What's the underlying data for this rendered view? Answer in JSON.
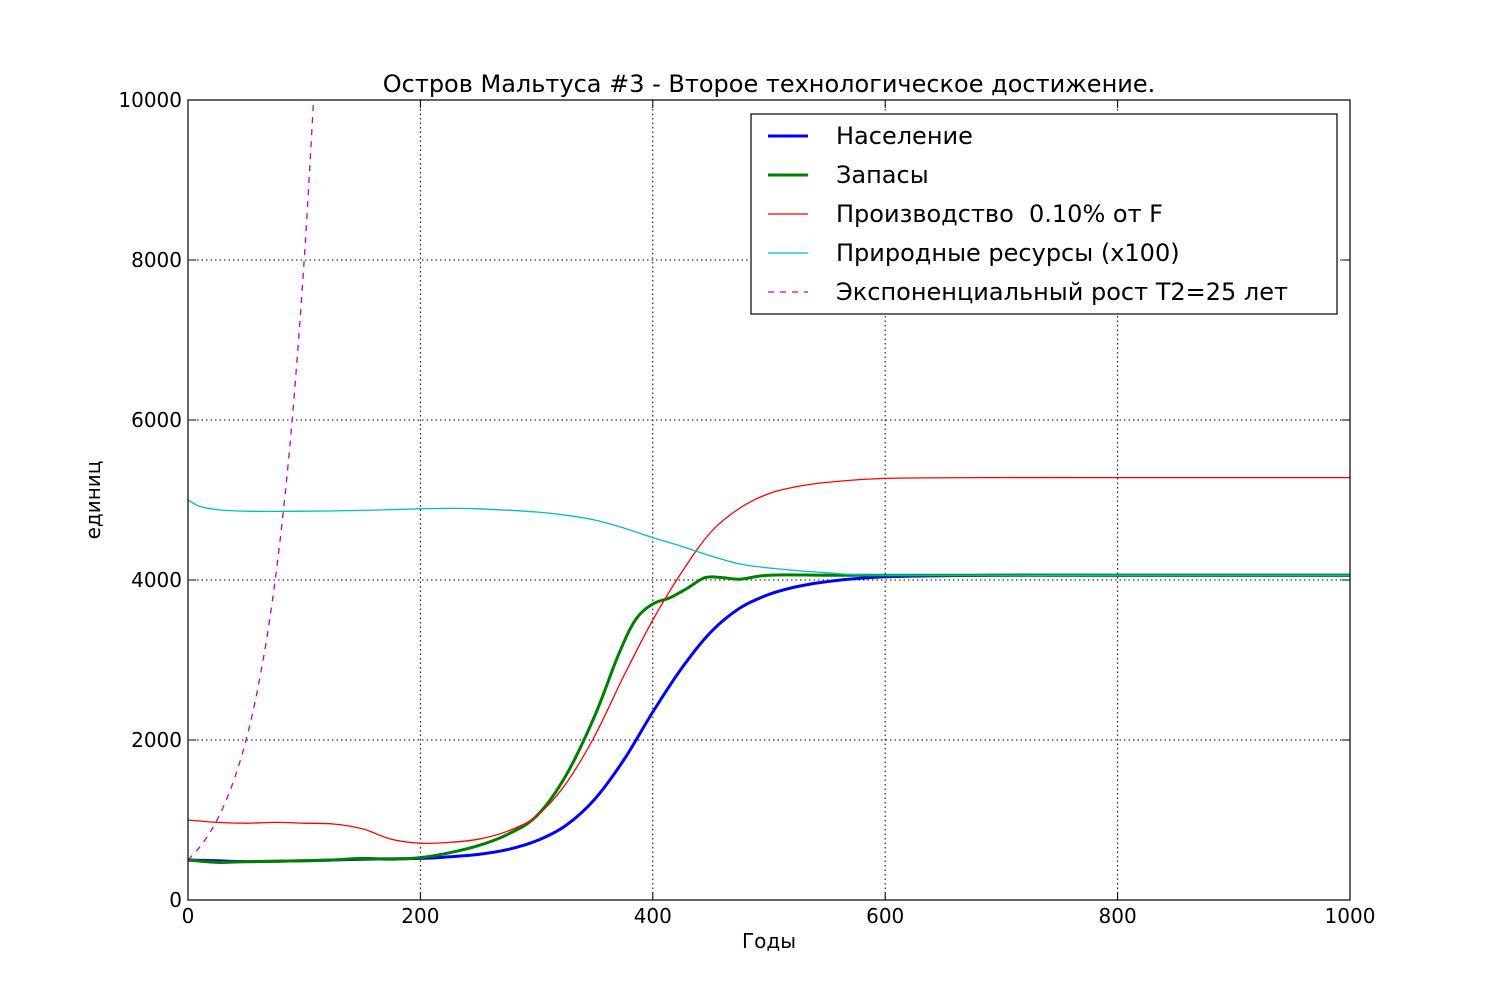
{
  "chart_data": {
    "type": "line",
    "title": "Остров Мальтуса #3 - Второе технологическое достижение.",
    "xlabel": "Годы",
    "ylabel": "единиц",
    "xlim": [
      0,
      1000
    ],
    "ylim": [
      0,
      10000
    ],
    "xticks": [
      "0",
      "200",
      "400",
      "600",
      "800",
      "1000"
    ],
    "yticks": [
      "0",
      "2000",
      "4000",
      "6000",
      "8000",
      "10000"
    ],
    "grid": true,
    "legend_position": "top-right",
    "series": [
      {
        "name": "Население",
        "color": "#0000ff",
        "style": "solid",
        "width": "thick",
        "x": [
          0,
          25,
          50,
          100,
          150,
          200,
          225,
          250,
          275,
          300,
          325,
          350,
          375,
          400,
          425,
          450,
          475,
          500,
          525,
          550,
          600,
          700,
          800,
          1000
        ],
        "y": [
          500,
          490,
          480,
          490,
          510,
          520,
          540,
          570,
          630,
          740,
          930,
          1260,
          1750,
          2350,
          2900,
          3350,
          3650,
          3820,
          3920,
          3980,
          4040,
          4060,
          4060,
          4060
        ]
      },
      {
        "name": "Запасы",
        "color": "#008000",
        "style": "solid",
        "width": "thick",
        "x": [
          0,
          25,
          50,
          100,
          125,
          150,
          175,
          200,
          225,
          250,
          275,
          300,
          325,
          350,
          370,
          385,
          400,
          415,
          430,
          445,
          460,
          475,
          500,
          550,
          600,
          700,
          800,
          1000
        ],
        "y": [
          500,
          470,
          480,
          490,
          500,
          520,
          510,
          530,
          590,
          680,
          820,
          1050,
          1550,
          2300,
          3050,
          3500,
          3700,
          3780,
          3900,
          4030,
          4030,
          4010,
          4060,
          4060,
          4060,
          4060,
          4060,
          4060
        ]
      },
      {
        "name": "Производство  0.10% от F",
        "color": "#ff0000",
        "style": "solid",
        "width": "thin",
        "x": [
          0,
          25,
          50,
          75,
          100,
          125,
          150,
          175,
          200,
          225,
          250,
          275,
          300,
          325,
          350,
          375,
          400,
          425,
          450,
          475,
          500,
          525,
          550,
          600,
          700,
          800,
          1000
        ],
        "y": [
          1000,
          970,
          960,
          970,
          960,
          950,
          890,
          760,
          710,
          720,
          760,
          860,
          1050,
          1450,
          2050,
          2800,
          3500,
          4100,
          4600,
          4900,
          5080,
          5170,
          5220,
          5270,
          5280,
          5280,
          5280
        ]
      },
      {
        "name": "Природные ресурсы (x100)",
        "color": "#00bfbf",
        "style": "solid",
        "width": "thin",
        "x": [
          0,
          10,
          25,
          50,
          100,
          150,
          200,
          225,
          250,
          300,
          325,
          350,
          375,
          400,
          425,
          450,
          475,
          500,
          550,
          600,
          800,
          1000
        ],
        "y": [
          5000,
          4920,
          4880,
          4860,
          4860,
          4870,
          4890,
          4895,
          4890,
          4850,
          4810,
          4750,
          4650,
          4530,
          4420,
          4300,
          4200,
          4150,
          4090,
          4060,
          4060,
          4060
        ]
      },
      {
        "name": "Экспоненциальный рост T2=25 лет",
        "color": "#bf00bf",
        "style": "dashed",
        "width": "thin",
        "x": [
          0,
          10,
          20,
          30,
          40,
          50,
          60,
          70,
          80,
          90,
          100,
          108
        ],
        "y": [
          500,
          660,
          870,
          1150,
          1520,
          2000,
          2640,
          3480,
          4590,
          6060,
          8000,
          9980
        ]
      }
    ]
  }
}
